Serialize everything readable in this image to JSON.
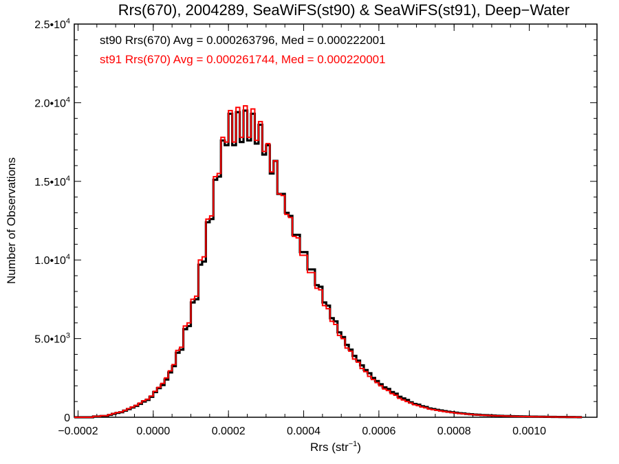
{
  "chart_data": {
    "type": "histogram",
    "title": "Rrs(670), 2004289, SeaWiFS(st90) & SeaWiFS(st91), Deep−Water",
    "xlabel": "Rrs (str",
    "xlabel_exponent": "−1",
    "xlabel_close": ")",
    "ylabel": "Number of Observations",
    "xlim": [
      -0.00021,
      0.00118
    ],
    "ylim": [
      0,
      25000
    ],
    "x_ticks": [
      -0.0002,
      0.0,
      0.0002,
      0.0004,
      0.0006,
      0.0008,
      0.001
    ],
    "x_tick_labels": [
      "−0.0002",
      "0.0000",
      "0.0002",
      "0.0004",
      "0.0006",
      "0.0008",
      "0.0010"
    ],
    "y_ticks": [
      {
        "value": 0,
        "mantissa": "0",
        "exponent": ""
      },
      {
        "value": 5000,
        "mantissa": "5.0•10",
        "exponent": "3"
      },
      {
        "value": 10000,
        "mantissa": "1.0•10",
        "exponent": "4"
      },
      {
        "value": 15000,
        "mantissa": "1.5•10",
        "exponent": "4"
      },
      {
        "value": 20000,
        "mantissa": "2.0•10",
        "exponent": "4"
      },
      {
        "value": 25000,
        "mantissa": "2.5•10",
        "exponent": "4"
      }
    ],
    "annotations": [
      {
        "text": "st90 Rrs(670) Avg = 0.000263796, Med = 0.000222001",
        "color": "#000000"
      },
      {
        "text": "st91 Rrs(670) Avg = 0.000261744, Med = 0.000220001",
        "color": "#ff0000"
      }
    ],
    "bin_width": 1e-05,
    "x_start": -0.00021,
    "series": [
      {
        "name": "st90",
        "color": "#000000",
        "values": [
          0,
          0,
          0,
          0,
          0,
          50,
          50,
          80,
          80,
          150,
          220,
          280,
          320,
          420,
          520,
          620,
          720,
          850,
          1000,
          1100,
          1300,
          1600,
          1850,
          2050,
          2400,
          2850,
          3250,
          4100,
          4300,
          5600,
          5800,
          7300,
          7500,
          9700,
          9900,
          12400,
          12600,
          15100,
          15300,
          17600,
          17300,
          19300,
          17300,
          19400,
          17500,
          19500,
          17600,
          19300,
          17400,
          18600,
          16700,
          17300,
          15500,
          16300,
          14200,
          14200,
          13000,
          12800,
          11600,
          11600,
          10500,
          10500,
          9400,
          9400,
          8400,
          8300,
          7300,
          7100,
          6300,
          6100,
          5400,
          5100,
          4600,
          4300,
          3900,
          3600,
          3300,
          3000,
          2800,
          2500,
          2300,
          2100,
          1900,
          1800,
          1600,
          1500,
          1300,
          1200,
          1100,
          950,
          850,
          800,
          700,
          650,
          560,
          520,
          470,
          430,
          390,
          350,
          320,
          290,
          260,
          240,
          210,
          190,
          170,
          160,
          140,
          130,
          120,
          110,
          95,
          90,
          80,
          75,
          65,
          60,
          55,
          50,
          45,
          40,
          38,
          35,
          32,
          28,
          25,
          22,
          20,
          18,
          15,
          12,
          10,
          8,
          5
        ]
      },
      {
        "name": "st91",
        "color": "#ff0000",
        "values": [
          0,
          0,
          0,
          0,
          0,
          60,
          60,
          100,
          100,
          170,
          240,
          300,
          340,
          440,
          550,
          650,
          760,
          900,
          1050,
          1150,
          1350,
          1650,
          1900,
          2150,
          2500,
          2950,
          3350,
          4250,
          4450,
          5800,
          6000,
          7500,
          7700,
          10000,
          10200,
          12600,
          12800,
          15300,
          15500,
          17800,
          17500,
          19500,
          17500,
          19700,
          17800,
          19800,
          17800,
          19600,
          17600,
          18800,
          16900,
          17400,
          15600,
          16300,
          14200,
          14100,
          12900,
          12700,
          11500,
          11400,
          10300,
          10300,
          9200,
          9200,
          8200,
          8100,
          7100,
          6900,
          6100,
          5900,
          5200,
          5000,
          4400,
          4200,
          3700,
          3500,
          3100,
          2900,
          2600,
          2400,
          2200,
          2000,
          1800,
          1700,
          1500,
          1400,
          1200,
          1100,
          1000,
          900,
          800,
          740,
          650,
          600,
          520,
          480,
          440,
          400,
          360,
          330,
          300,
          270,
          240,
          220,
          200,
          180,
          160,
          150,
          130,
          120,
          110,
          100,
          90,
          85,
          75,
          70,
          60,
          55,
          50,
          45,
          42,
          38,
          35,
          32,
          29,
          26,
          23,
          20,
          18,
          16,
          14,
          11,
          9,
          7,
          5
        ]
      }
    ]
  }
}
